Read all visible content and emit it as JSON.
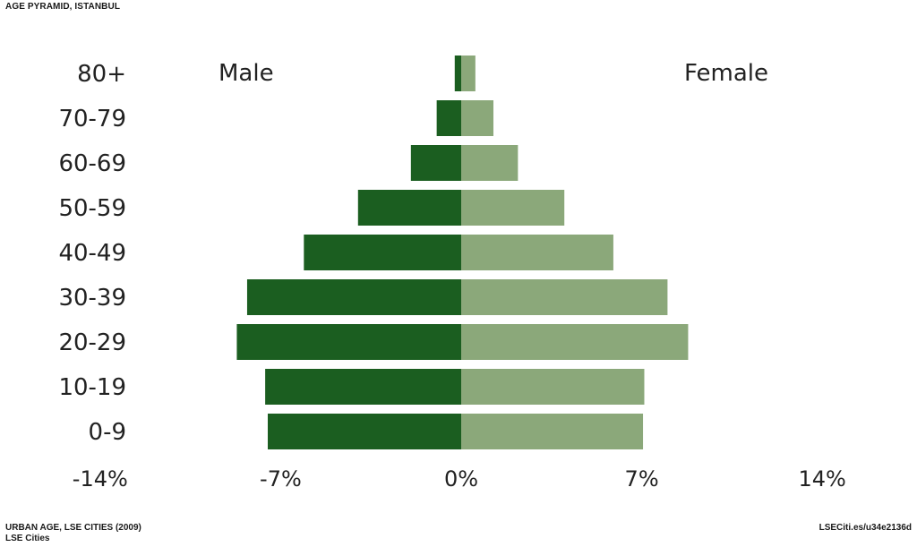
{
  "header": {
    "title": "AGE PYRAMID, ISTANBUL"
  },
  "footer": {
    "source_line1": "URBAN AGE, LSE CITIES (2009)",
    "source_line2": "LSE Cities",
    "link": "LSECiti.es/u34e2136d"
  },
  "colors": {
    "male": "#1b5e20",
    "female": "#8ba87a"
  },
  "chart_data": {
    "type": "bar",
    "orientation": "horizontal",
    "categories": [
      "80+",
      "70-79",
      "60-69",
      "50-59",
      "40-49",
      "30-39",
      "20-29",
      "10-19",
      "0-9"
    ],
    "series": [
      {
        "name": "Male",
        "values": [
          0.25,
          0.95,
          1.95,
          4.0,
          6.1,
          8.3,
          8.7,
          7.6,
          7.5
        ]
      },
      {
        "name": "Female",
        "values": [
          0.55,
          1.25,
          2.2,
          4.0,
          5.9,
          8.0,
          8.8,
          7.1,
          7.05
        ]
      }
    ],
    "xlim": [
      -14,
      14
    ],
    "xticks": [
      -14,
      -7,
      0,
      7,
      14
    ],
    "xtick_labels": [
      "-14%",
      "-7%",
      "0%",
      "7%",
      "14%"
    ],
    "grid": false
  }
}
